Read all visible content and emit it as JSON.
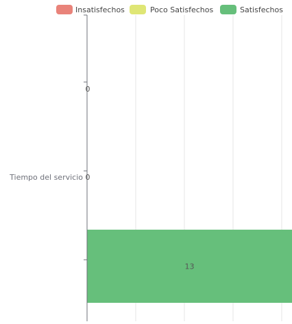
{
  "chart_data": {
    "type": "bar",
    "orientation": "horizontal",
    "categories": [
      "Tiempo del servicio"
    ],
    "series": [
      {
        "name": "Insatisfechos",
        "values": [
          0
        ],
        "color": "#e9837a"
      },
      {
        "name": "Poco Satisfechos",
        "values": [
          0
        ],
        "color": "#dfe675"
      },
      {
        "name": "Satisfechos",
        "values": [
          13
        ],
        "color": "#66bf7b"
      }
    ],
    "data_labels": [
      "0",
      "0",
      "13"
    ],
    "xlim": [
      0,
      13
    ],
    "grid": true,
    "legend_position": "top"
  }
}
